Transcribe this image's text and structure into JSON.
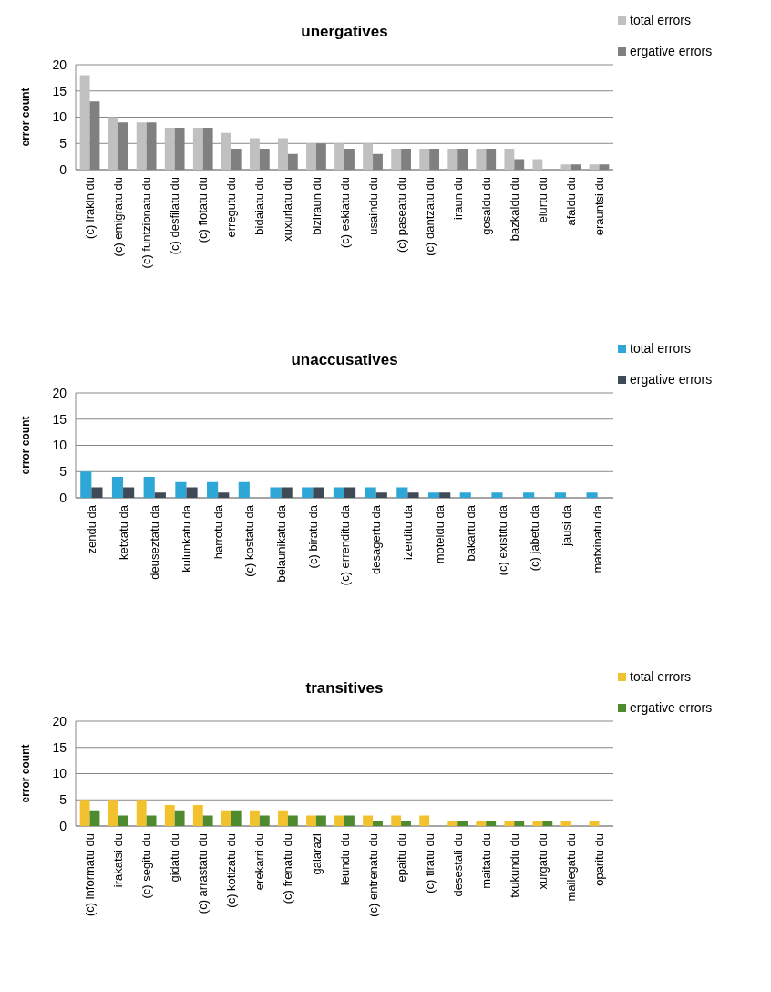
{
  "chart_data": [
    {
      "type": "bar",
      "title": "unergatives",
      "ylabel": "error count",
      "categories": [
        "(c) irakin du",
        "(c) emigratu du",
        "(c) funtzionatu du",
        "(c) desfilatu du",
        "(c) flotatu du",
        "erregutu du",
        "bidaiatu du",
        "xuxurlatu du",
        "biziraun du",
        "(c) eskiatu du",
        "usaindu du",
        "(c) paseatu du",
        "(c) dantzatu du",
        "iraun du",
        "gosaldu du",
        "bazkaldu du",
        "elurtu du",
        "afaldu du",
        "erauntsi du"
      ],
      "series": [
        {
          "name": "total errors",
          "color": "#c0c0c0",
          "values": [
            18,
            10,
            9,
            8,
            8,
            7,
            6,
            6,
            5,
            5,
            5,
            4,
            4,
            4,
            4,
            4,
            2,
            1,
            1
          ]
        },
        {
          "name": "ergative errors",
          "color": "#808080",
          "values": [
            13,
            9,
            9,
            8,
            8,
            4,
            4,
            3,
            5,
            4,
            3,
            4,
            4,
            4,
            4,
            2,
            0,
            1,
            1
          ]
        }
      ],
      "ylim": [
        0,
        20
      ],
      "yticks": [
        0,
        5,
        10,
        15,
        20
      ],
      "grid": "y",
      "legend": "top right"
    },
    {
      "type": "bar",
      "title": "unaccusatives",
      "ylabel": "error count",
      "categories": [
        "zendu da",
        "ketxatu da",
        "deuseztatu da",
        "kulunkatu da",
        "harrotu da",
        "(c) kostatu da",
        "belaunikatu da",
        "(c) biratu da",
        "(c) errenditu da",
        "desagertu da",
        "izerditu da",
        "moteldu da",
        "bakartu da",
        "(c) existitu da",
        "(c) jabetu da",
        "jausi da",
        "matxinatu da"
      ],
      "series": [
        {
          "name": "total errors",
          "color": "#2ea6d6",
          "values": [
            5,
            4,
            4,
            3,
            3,
            3,
            2,
            2,
            2,
            2,
            2,
            1,
            1,
            1,
            1,
            1,
            1
          ]
        },
        {
          "name": "ergative errors",
          "color": "#3f4a56",
          "values": [
            2,
            2,
            1,
            2,
            1,
            0,
            2,
            2,
            2,
            1,
            1,
            1,
            0,
            0,
            0,
            0,
            0
          ]
        }
      ],
      "ylim": [
        0,
        20
      ],
      "yticks": [
        0,
        5,
        10,
        15,
        20
      ],
      "grid": "y",
      "legend": "top right"
    },
    {
      "type": "bar",
      "title": "transitives",
      "ylabel": "error count",
      "categories": [
        "(c) informatu du",
        "irakatsi du",
        "(c) segitu du",
        "gidatu du",
        "(c) arrastatu du",
        "(c) kotizatu du",
        "erekarri du",
        "(c) frenatu du",
        "galarazi",
        "leundu du",
        "(c) entrenatu du",
        "epaitu du",
        "(c) tiratu du",
        "desestali du",
        "maitatu du",
        "txukundu du",
        "xurgatu du",
        "mailegatu du",
        "oparitu du"
      ],
      "series": [
        {
          "name": "total errors",
          "color": "#f2c12e",
          "values": [
            5,
            5,
            5,
            4,
            4,
            3,
            3,
            3,
            2,
            2,
            2,
            2,
            2,
            1,
            1,
            1,
            1,
            1,
            1
          ]
        },
        {
          "name": "ergative errors",
          "color": "#4e8a2e",
          "values": [
            3,
            2,
            2,
            3,
            2,
            3,
            2,
            2,
            2,
            2,
            1,
            1,
            0,
            1,
            1,
            1,
            1,
            0,
            0
          ]
        }
      ],
      "ylim": [
        0,
        20
      ],
      "yticks": [
        0,
        5,
        10,
        15,
        20
      ],
      "grid": "y",
      "legend": "top right"
    }
  ]
}
